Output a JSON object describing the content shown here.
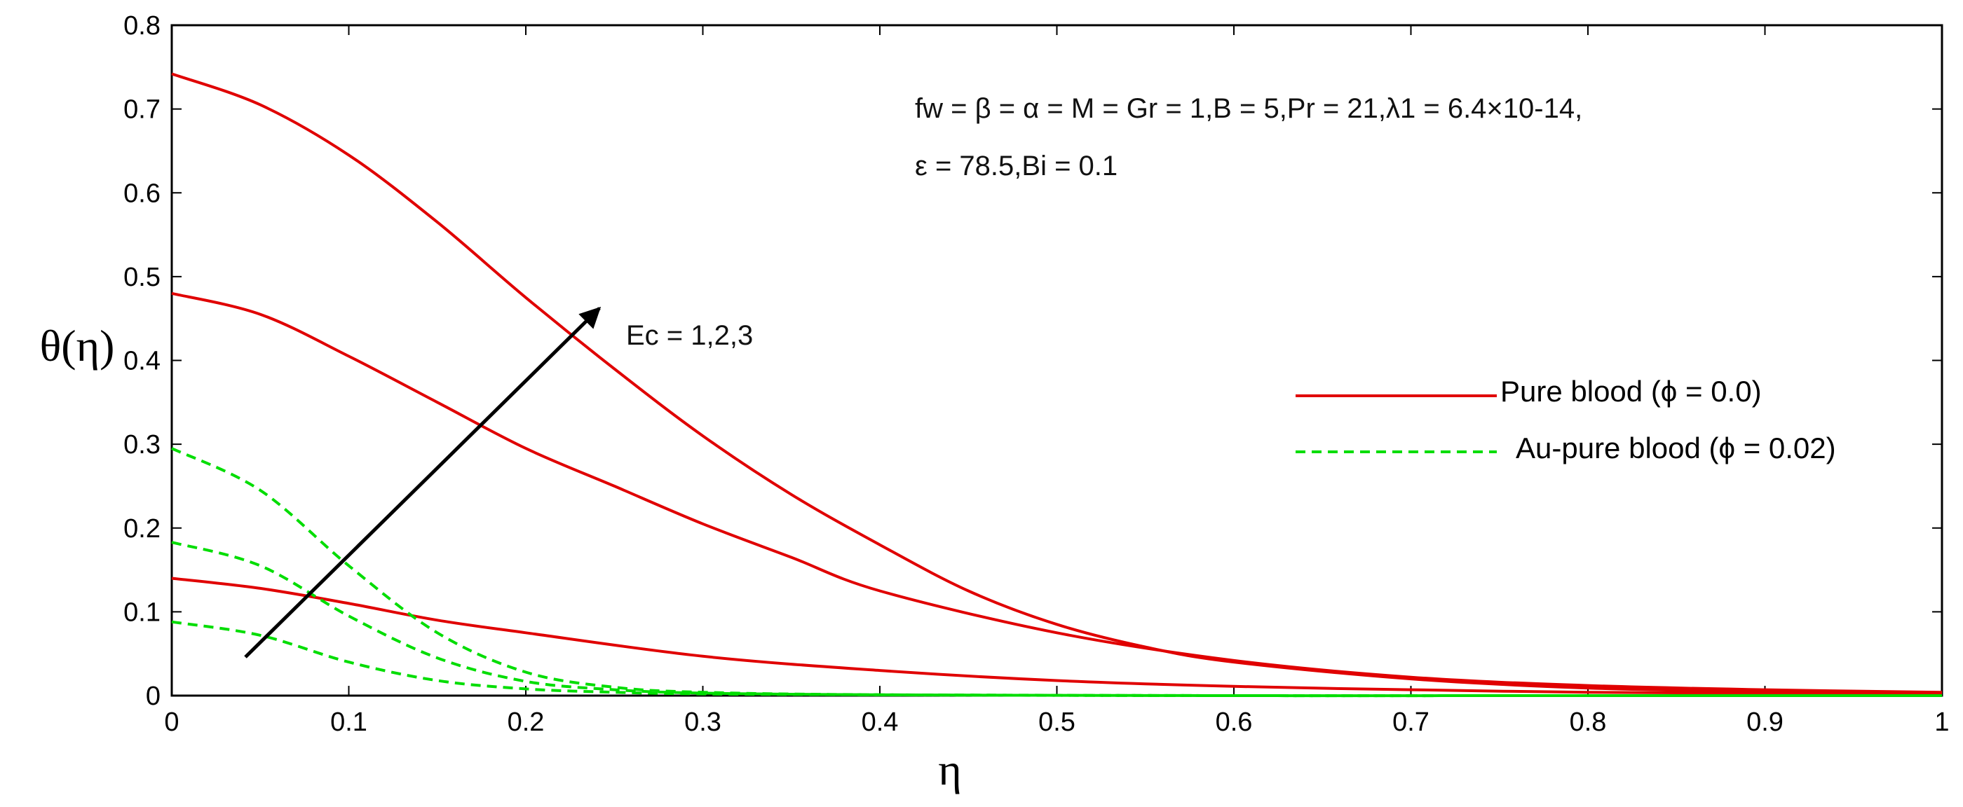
{
  "chart_data": {
    "type": "line",
    "xlabel": "η",
    "ylabel": "θ(η)",
    "xlim": [
      0,
      1
    ],
    "ylim": [
      0,
      0.8
    ],
    "x_ticks": [
      "0",
      "0.1",
      "0.2",
      "0.3",
      "0.4",
      "0.5",
      "0.6",
      "0.7",
      "0.8",
      "0.9",
      "1"
    ],
    "y_ticks": [
      "0",
      "0.1",
      "0.2",
      "0.3",
      "0.4",
      "0.5",
      "0.6",
      "0.7",
      "0.8"
    ],
    "grid": false,
    "legend_position": "right",
    "legend": [
      {
        "label": "Pure blood (ϕ = 0.0)",
        "color": "#e00000",
        "style": "solid"
      },
      {
        "label": "Au-pure blood (ϕ = 0.02)",
        "color": "#00dd00",
        "style": "dashed"
      }
    ],
    "annotations": {
      "params_line1": "fw = β = α = M = Gr = 1,B = 5,Pr = 21,λ1 = 6.4×10-14,",
      "params_line2": "ε = 78.5,Bi = 0.1",
      "arrow_label": "Ec = 1,2,3"
    },
    "series": [
      {
        "group": "Pure blood (ϕ = 0.0)",
        "ec": 1,
        "color": "#e00000",
        "dash": "solid",
        "x": [
          0,
          0.05,
          0.1,
          0.15,
          0.2,
          0.3,
          0.4,
          0.5,
          0.6,
          0.7,
          0.8,
          0.9,
          1.0
        ],
        "y": [
          0.14,
          0.128,
          0.11,
          0.09,
          0.075,
          0.047,
          0.03,
          0.018,
          0.011,
          0.007,
          0.004,
          0.003,
          0.002
        ]
      },
      {
        "group": "Pure blood (ϕ = 0.0)",
        "ec": 2,
        "color": "#e00000",
        "dash": "solid",
        "x": [
          0,
          0.05,
          0.1,
          0.15,
          0.2,
          0.25,
          0.3,
          0.35,
          0.4,
          0.5,
          0.6,
          0.7,
          0.8,
          0.9,
          1.0
        ],
        "y": [
          0.48,
          0.455,
          0.405,
          0.35,
          0.295,
          0.25,
          0.205,
          0.165,
          0.125,
          0.075,
          0.042,
          0.022,
          0.012,
          0.007,
          0.004
        ]
      },
      {
        "group": "Pure blood (ϕ = 0.0)",
        "ec": 3,
        "color": "#e00000",
        "dash": "solid",
        "x": [
          0,
          0.05,
          0.1,
          0.15,
          0.2,
          0.25,
          0.3,
          0.35,
          0.4,
          0.45,
          0.5,
          0.55,
          0.6,
          0.7,
          0.8,
          0.9,
          1.0
        ],
        "y": [
          0.742,
          0.705,
          0.645,
          0.565,
          0.475,
          0.39,
          0.31,
          0.24,
          0.18,
          0.125,
          0.085,
          0.058,
          0.04,
          0.02,
          0.009,
          0.005,
          0.003
        ]
      },
      {
        "group": "Au-pure blood (ϕ = 0.02)",
        "ec": 1,
        "color": "#00dd00",
        "dash": "dashed",
        "x": [
          0,
          0.05,
          0.1,
          0.15,
          0.2,
          0.25,
          0.3,
          0.4,
          0.6,
          0.8,
          1.0
        ],
        "y": [
          0.088,
          0.072,
          0.04,
          0.018,
          0.008,
          0.004,
          0.002,
          0.001,
          0.0,
          0.0,
          0.0
        ]
      },
      {
        "group": "Au-pure blood (ϕ = 0.02)",
        "ec": 2,
        "color": "#00dd00",
        "dash": "dashed",
        "x": [
          0,
          0.05,
          0.1,
          0.15,
          0.2,
          0.25,
          0.3,
          0.4,
          0.6,
          0.8,
          1.0
        ],
        "y": [
          0.183,
          0.155,
          0.095,
          0.045,
          0.017,
          0.007,
          0.003,
          0.001,
          0.0,
          0.0,
          0.0
        ]
      },
      {
        "group": "Au-pure blood (ϕ = 0.02)",
        "ec": 3,
        "color": "#00dd00",
        "dash": "dashed",
        "x": [
          0,
          0.05,
          0.1,
          0.15,
          0.2,
          0.25,
          0.3,
          0.4,
          0.6,
          0.8,
          1.0
        ],
        "y": [
          0.295,
          0.245,
          0.155,
          0.075,
          0.028,
          0.01,
          0.004,
          0.001,
          0.0,
          0.0,
          0.0
        ]
      }
    ]
  }
}
